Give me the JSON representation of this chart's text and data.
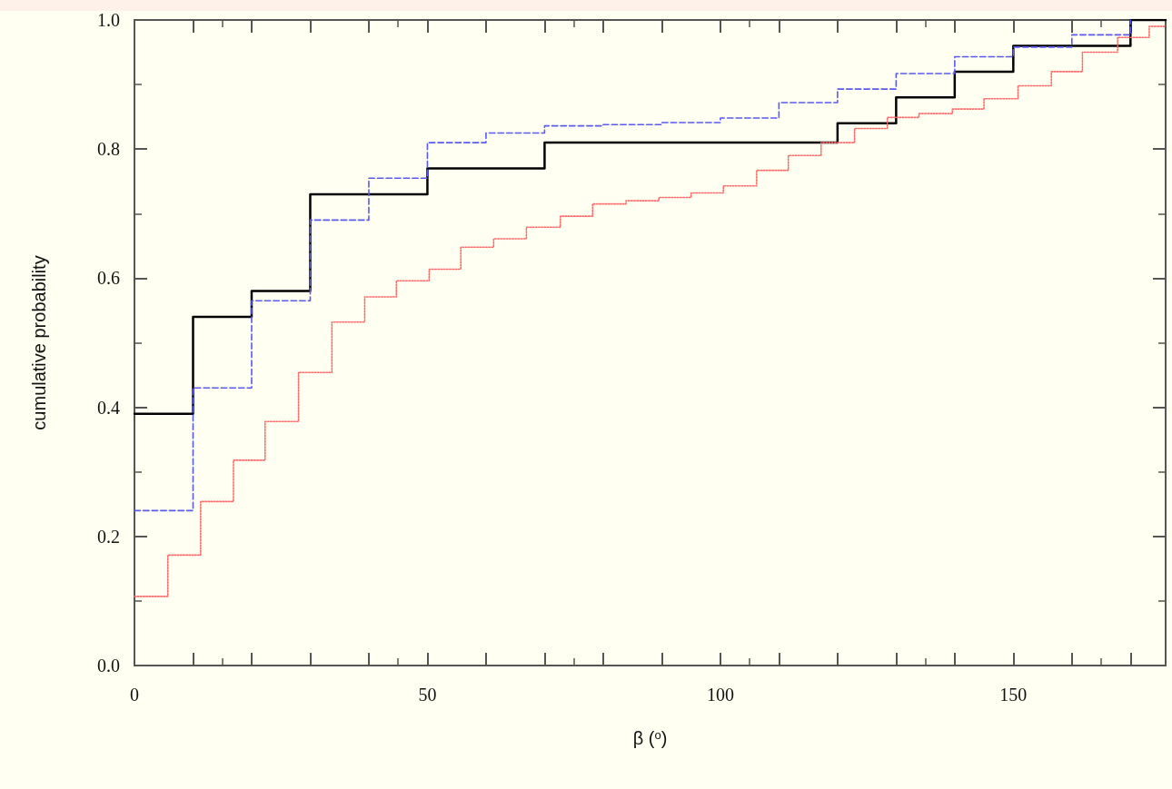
{
  "chart_data": {
    "type": "step",
    "xlabel": "β ($^{o}$)",
    "ylabel": "cumulative probability",
    "xlim": [
      0,
      176
    ],
    "ylim": [
      0,
      1
    ],
    "xticks": [
      0,
      {
        "value": 10,
        "label": null
      },
      {
        "value": 20,
        "label": null
      },
      {
        "value": 30,
        "label": null
      },
      {
        "value": 40,
        "label": null
      },
      50,
      {
        "value": 60,
        "label": null
      },
      {
        "value": 70,
        "label": null
      },
      {
        "value": 80,
        "label": null
      },
      {
        "value": 90,
        "label": null
      },
      100,
      {
        "value": 110,
        "label": null
      },
      {
        "value": 120,
        "label": null
      },
      {
        "value": 130,
        "label": null
      },
      {
        "value": 140,
        "label": null
      },
      150,
      {
        "value": 160,
        "label": null
      },
      {
        "value": 170,
        "label": null
      }
    ],
    "yticks": [
      {
        "value": 0,
        "label": "0.0"
      },
      0.2,
      0.4,
      0.6,
      0.8,
      {
        "value": 1,
        "label": "1.0"
      }
    ],
    "grid": false,
    "marker": "none",
    "series": [
      {
        "color": "#000000",
        "line_style": "solid",
        "x": [
          0,
          10,
          20,
          30,
          50,
          70,
          120,
          130,
          140,
          150,
          170,
          176
        ],
        "values": [
          0.39,
          0.54,
          0.58,
          0.73,
          0.77,
          0.81,
          0.84,
          0.88,
          0.92,
          0.96,
          1.0,
          1.0
        ]
      },
      {
        "color": "#5a5af0",
        "line_style": "dashed",
        "x": [
          0,
          10,
          20,
          30,
          40,
          50,
          60,
          70,
          80,
          90,
          100,
          110,
          120,
          130,
          140,
          150,
          160,
          170
        ],
        "values": [
          0.24,
          0.43,
          0.565,
          0.69,
          0.755,
          0.81,
          0.825,
          0.836,
          0.838,
          0.841,
          0.848,
          0.872,
          0.893,
          0.917,
          0.943,
          0.958,
          0.977,
          1.0
        ]
      },
      {
        "color": "#ff6a6a",
        "line_style": "dotted",
        "x": [
          0,
          5.7,
          11.3,
          16.9,
          22.3,
          28,
          33.7,
          39.3,
          44.7,
          50.3,
          55.7,
          61.3,
          66.9,
          72.7,
          78.2,
          83.9,
          89.5,
          95,
          100.5,
          106.2,
          111.6,
          117.2,
          122.9,
          128.5,
          133.9,
          139.6,
          145,
          150.8,
          156.5,
          161.8,
          167.8,
          173.2,
          176
        ],
        "values": [
          0.107,
          0.171,
          0.254,
          0.318,
          0.378,
          0.454,
          0.532,
          0.571,
          0.596,
          0.614,
          0.648,
          0.661,
          0.679,
          0.696,
          0.715,
          0.72,
          0.725,
          0.732,
          0.743,
          0.767,
          0.79,
          0.81,
          0.832,
          0.849,
          0.855,
          0.862,
          0.878,
          0.898,
          0.92,
          0.95,
          0.973,
          0.99,
          0.99
        ]
      }
    ]
  }
}
